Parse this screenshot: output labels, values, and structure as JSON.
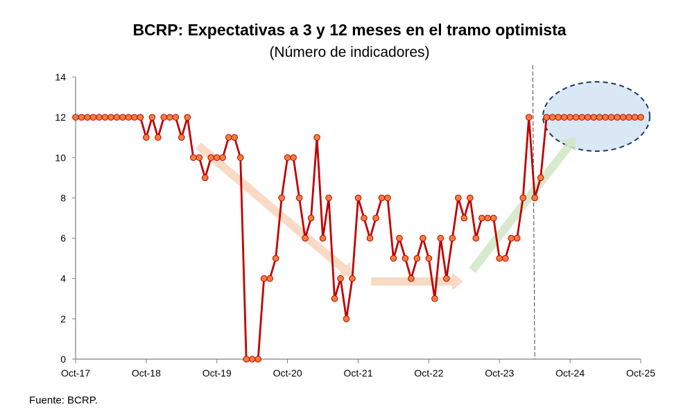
{
  "chart_data": {
    "type": "line",
    "title": "BCRP: Expectativas a 3 y 12 meses en el tramo optimista",
    "subtitle": "(Número de indicadores)",
    "xlabel": "",
    "ylabel": "",
    "ylim": [
      0,
      14
    ],
    "yticks": [
      0,
      2,
      4,
      6,
      8,
      10,
      12,
      14
    ],
    "xtick_labels": [
      "Oct-17",
      "Oct-18",
      "Oct-19",
      "Oct-20",
      "Oct-21",
      "Oct-22",
      "Oct-23",
      "Oct-24",
      "Oct-25"
    ],
    "x_frequency": "monthly",
    "grid": false,
    "series": [
      {
        "name": "Expectativas a 3 y 12 meses en el tramo optimista",
        "color": "#c00000",
        "marker_color": "#f07f3c",
        "values": [
          12,
          12,
          12,
          12,
          12,
          12,
          12,
          12,
          12,
          12,
          12,
          12,
          11,
          12,
          11,
          12,
          12,
          12,
          11,
          12,
          10,
          10,
          9,
          10,
          10,
          10,
          11,
          11,
          10,
          0,
          0,
          0,
          4,
          4,
          5,
          8,
          10,
          10,
          8,
          6,
          7,
          11,
          6,
          8,
          3,
          4,
          2,
          4,
          8,
          7,
          6,
          7,
          8,
          8,
          5,
          6,
          5,
          4,
          5,
          6,
          5,
          3,
          6,
          4,
          6,
          8,
          7,
          8,
          6,
          7,
          7,
          7,
          5,
          5,
          6,
          6,
          8,
          12,
          8,
          9,
          12,
          12,
          12,
          12,
          12,
          12,
          12,
          12,
          12,
          12,
          12,
          12,
          12,
          12,
          12,
          12,
          12
        ]
      }
    ],
    "vertical_marker_index": 78,
    "source": "Fuente: BCRP."
  }
}
